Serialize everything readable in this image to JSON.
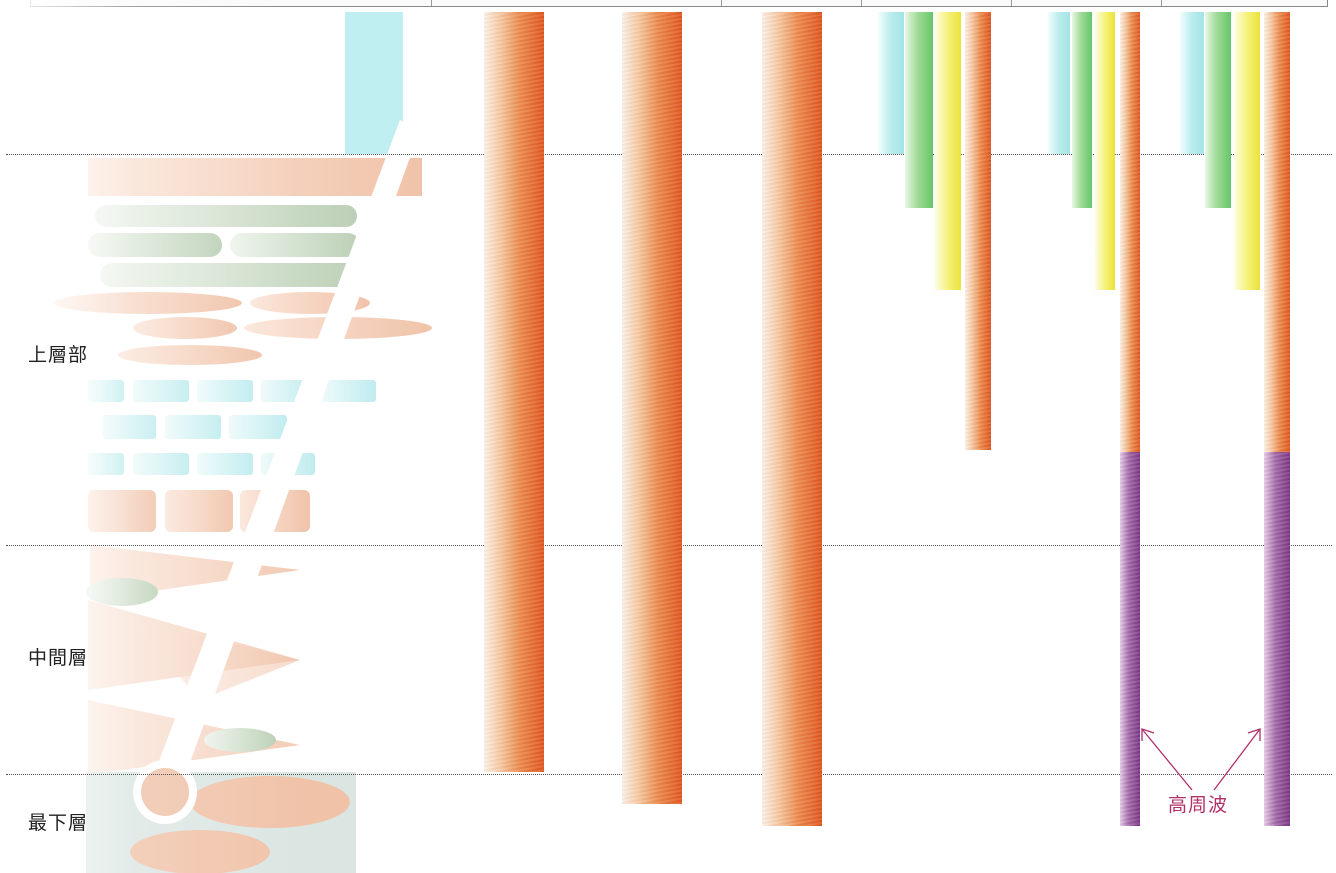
{
  "layers": {
    "upper": "上層部",
    "middle": "中間層",
    "bottom": "最下層"
  },
  "annotation": {
    "label": "高周波"
  },
  "colors": {
    "orange": "#e1561f",
    "purple": "#7c3686",
    "cyan": "#a3e3e6",
    "green": "#66c66a",
    "yellow": "#ece23a",
    "annotation": "#b0306a"
  }
}
